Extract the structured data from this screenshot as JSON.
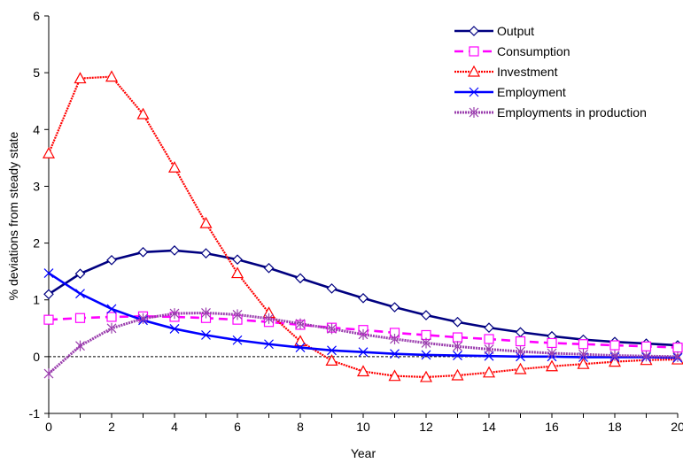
{
  "chart_data": {
    "type": "line",
    "xlabel": "Year",
    "ylabel": "% deviations from steady state",
    "xlim": [
      0,
      20
    ],
    "ylim": [
      -1,
      6
    ],
    "x_ticks": [
      0,
      2,
      4,
      6,
      8,
      10,
      12,
      14,
      16,
      18,
      20
    ],
    "y_ticks": [
      -1,
      0,
      1,
      2,
      3,
      4,
      5,
      6
    ],
    "reference_line": {
      "y": 0,
      "style": "dotted"
    },
    "legend_position": "top-right",
    "x": [
      0,
      1,
      2,
      3,
      4,
      5,
      6,
      7,
      8,
      9,
      10,
      11,
      12,
      13,
      14,
      15,
      16,
      17,
      18,
      19,
      20
    ],
    "series": [
      {
        "name": "Output",
        "color": "#000080",
        "marker": "diamond",
        "values": [
          1.1,
          1.46,
          1.7,
          1.84,
          1.87,
          1.82,
          1.71,
          1.56,
          1.38,
          1.2,
          1.03,
          0.87,
          0.73,
          0.61,
          0.51,
          0.43,
          0.36,
          0.3,
          0.26,
          0.23,
          0.2
        ]
      },
      {
        "name": "Consumption",
        "color": "#ff00ff",
        "marker": "square",
        "values": [
          0.65,
          0.68,
          0.7,
          0.71,
          0.7,
          0.68,
          0.65,
          0.61,
          0.56,
          0.51,
          0.47,
          0.42,
          0.38,
          0.34,
          0.31,
          0.27,
          0.24,
          0.22,
          0.2,
          0.18,
          0.16
        ]
      },
      {
        "name": "Investment",
        "color": "#ff0000",
        "marker": "triangle",
        "values": [
          3.58,
          4.9,
          4.93,
          4.27,
          3.33,
          2.35,
          1.47,
          0.77,
          0.27,
          -0.07,
          -0.26,
          -0.34,
          -0.36,
          -0.33,
          -0.28,
          -0.22,
          -0.17,
          -0.13,
          -0.09,
          -0.06,
          -0.05
        ]
      },
      {
        "name": "Employment",
        "color": "#0000ff",
        "marker": "x",
        "values": [
          1.47,
          1.11,
          0.84,
          0.64,
          0.49,
          0.38,
          0.29,
          0.22,
          0.16,
          0.11,
          0.08,
          0.05,
          0.03,
          0.02,
          0.01,
          0.0,
          0.0,
          -0.01,
          -0.01,
          -0.01,
          -0.02
        ]
      },
      {
        "name": "Employments in production",
        "color": "#9b3fae",
        "marker": "star",
        "values": [
          -0.3,
          0.19,
          0.5,
          0.67,
          0.76,
          0.77,
          0.74,
          0.67,
          0.58,
          0.49,
          0.39,
          0.31,
          0.24,
          0.18,
          0.13,
          0.09,
          0.06,
          0.04,
          0.02,
          0.01,
          0.0
        ]
      }
    ]
  }
}
